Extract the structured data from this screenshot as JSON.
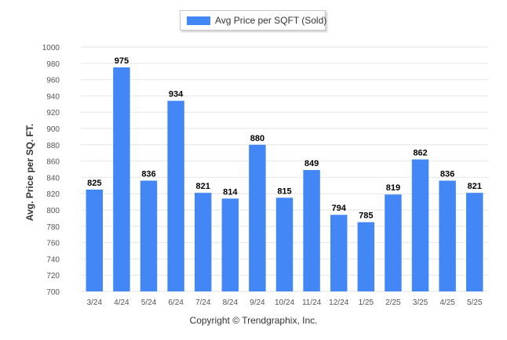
{
  "legend": {
    "label": "Avg Price per SQFT (Sold)"
  },
  "footer": {
    "copyright": "Copyright © Trendgraphix, Inc."
  },
  "colors": {
    "bar": "#4287f5",
    "grid": "#e6e6e6",
    "axis_text": "#555555",
    "label_text": "#000000"
  },
  "chart_data": {
    "type": "bar",
    "title": "",
    "xlabel": "",
    "ylabel": "Avg. Price per SQ. FT.",
    "categories": [
      "3/24",
      "4/24",
      "5/24",
      "6/24",
      "7/24",
      "8/24",
      "9/24",
      "10/24",
      "11/24",
      "12/24",
      "1/25",
      "2/25",
      "3/25",
      "4/25",
      "5/25"
    ],
    "series": [
      {
        "name": "Avg Price per SQFT (Sold)",
        "values": [
          825,
          975,
          836,
          934,
          821,
          814,
          880,
          815,
          849,
          794,
          785,
          819,
          862,
          836,
          821
        ]
      }
    ],
    "ylim": [
      700,
      1000
    ],
    "yticks": [
      700,
      720,
      740,
      760,
      780,
      800,
      820,
      840,
      860,
      880,
      900,
      920,
      940,
      960,
      980,
      1000
    ],
    "grid": true,
    "data_labels": true,
    "legend_position": "top-center"
  }
}
